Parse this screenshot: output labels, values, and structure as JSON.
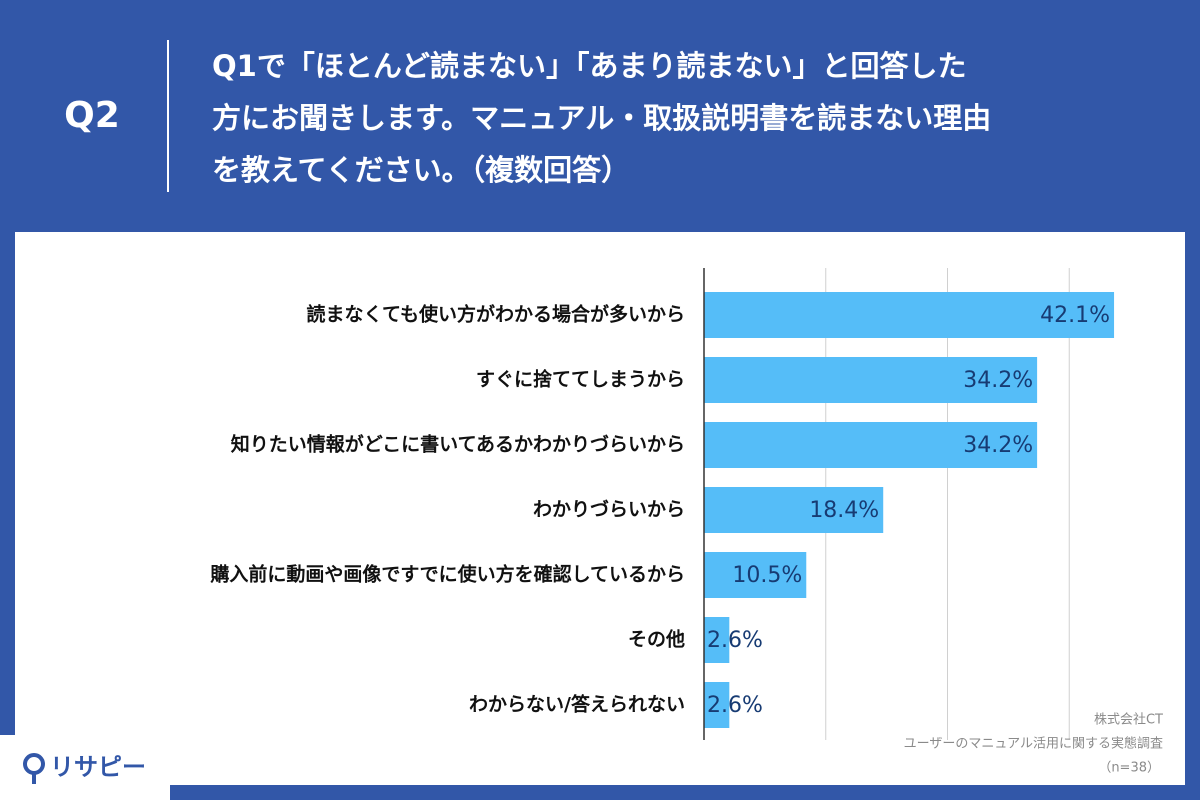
{
  "header": {
    "badge": "Q2",
    "lines": [
      "Q1で「ほとんど読まない」「あまり読まない」と回答した",
      "方にお聞きします。マニュアル・取扱説明書を読まない理由",
      "を教えてください。（複数回答）"
    ]
  },
  "chart_data": {
    "type": "bar",
    "orientation": "horizontal",
    "categories": [
      "読まなくても使い方がわかる場合が多いから",
      "すぐに捨ててしまうから",
      "知りたい情報がどこに書いてあるかわかりづらいから",
      "わかりづらいから",
      "購入前に動画や画像ですでに使い方を確認しているから",
      "その他",
      "わからない/答えられない"
    ],
    "values": [
      42.1,
      34.2,
      34.2,
      18.4,
      10.5,
      2.6,
      2.6
    ],
    "value_labels": [
      "42.1%",
      "34.2%",
      "34.2%",
      "18.4%",
      "10.5%",
      "2.6%",
      "2.6%"
    ],
    "color": "#55bdf8",
    "xlim": [
      0,
      50
    ],
    "xticks": [
      0,
      12.5,
      25,
      37.5,
      50
    ],
    "grid": true
  },
  "footer": {
    "company": "株式会社CT",
    "survey": "ユーザーのマニュアル活用に関する実態調査",
    "sample": "（n=38）"
  },
  "logo": "リサピー"
}
